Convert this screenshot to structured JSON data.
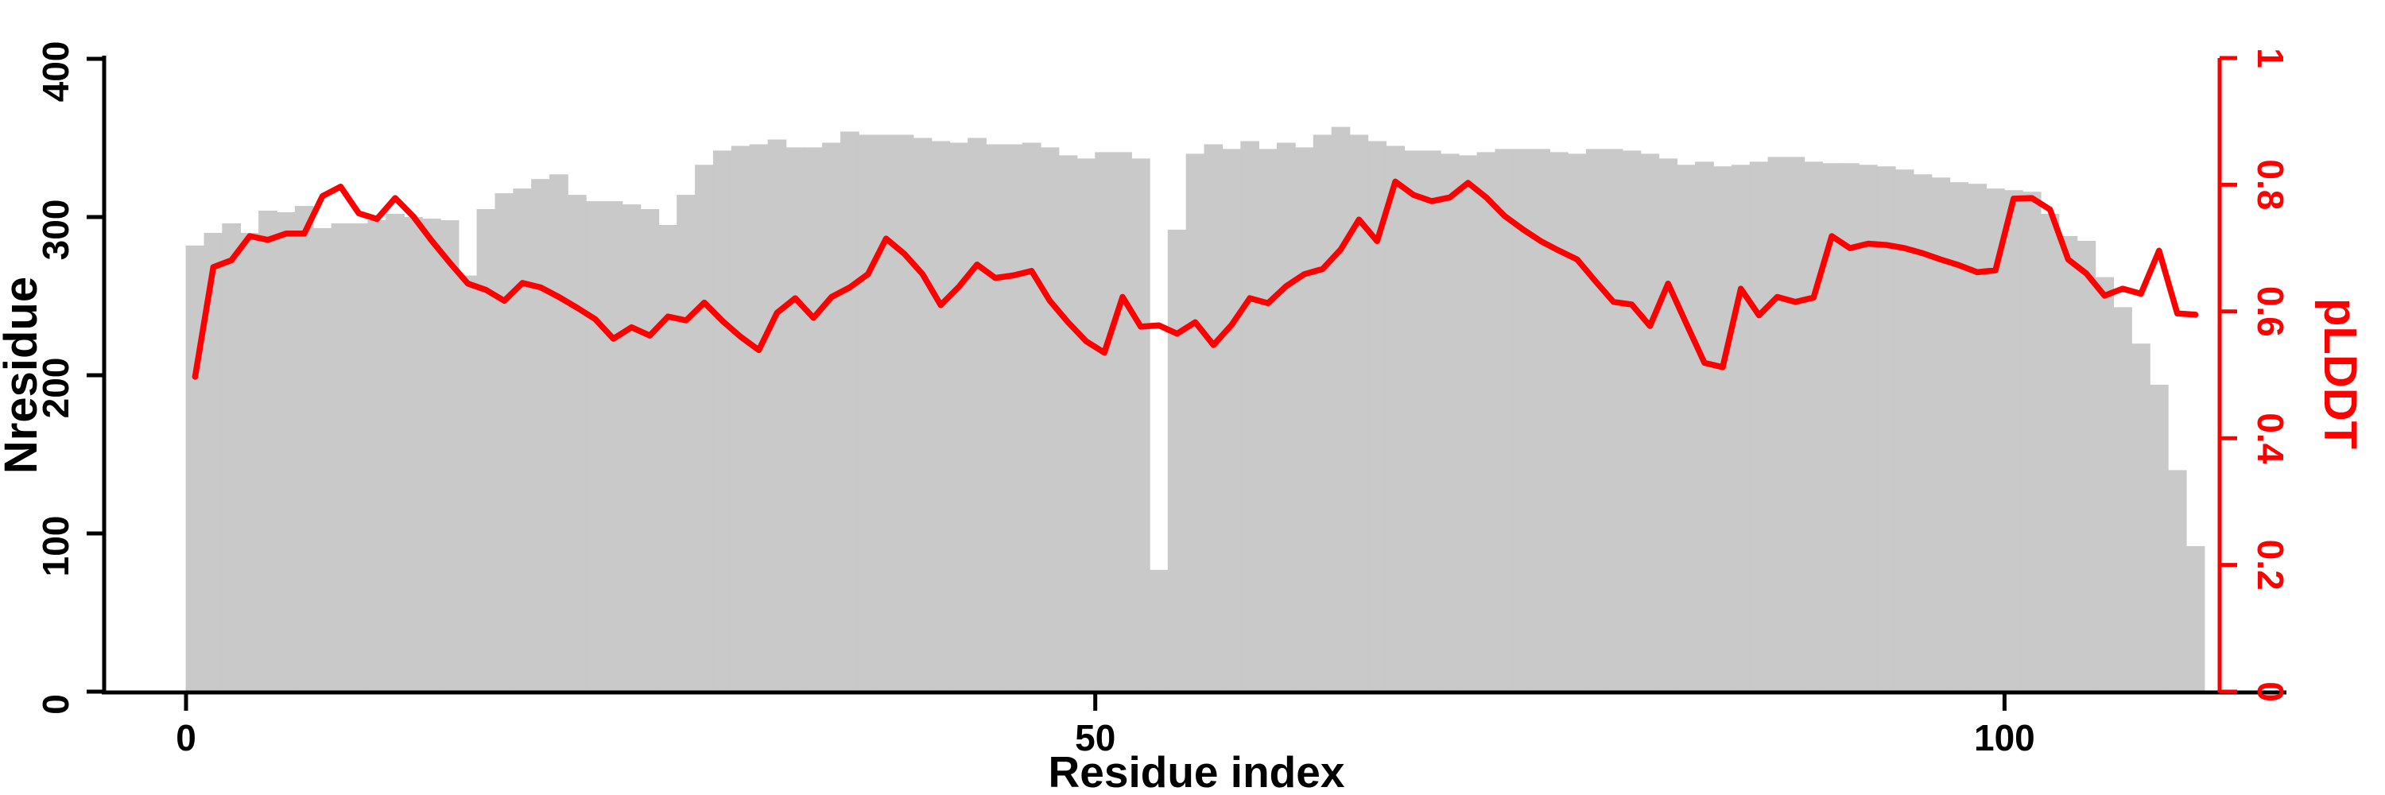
{
  "chart_data": {
    "type": "bar+line",
    "xlabel": "Residue index",
    "ylabel_left": "Nresidue",
    "ylabel_right": "pLDDT",
    "x_tick_labels": [
      "0",
      "50",
      "100"
    ],
    "x_tick_values": [
      0,
      50,
      100
    ],
    "x_range": [
      0,
      111
    ],
    "grid": "off",
    "legend": "none",
    "left_axis": {
      "range": [
        0,
        400
      ],
      "tick_labels": [
        "0",
        "100",
        "200",
        "300",
        "400"
      ],
      "tick_values": [
        0,
        100,
        200,
        300,
        400
      ],
      "color": "#000000"
    },
    "right_axis": {
      "range": [
        0,
        1
      ],
      "tick_labels": [
        "0",
        "0.2",
        "0.4",
        "0.6",
        "0.8",
        "1"
      ],
      "tick_values": [
        0,
        0.2,
        0.4,
        0.6,
        0.8,
        1
      ],
      "color": "#ff0000"
    },
    "bar_color": "#c9c9c9",
    "line_color": "#ff0000",
    "categories_note": "residue index 0-110, one bar per residue",
    "series": [
      {
        "name": "Nresidue",
        "type": "bar",
        "axis": "left",
        "values": [
          282,
          290,
          296,
          290,
          304,
          303,
          307,
          293,
          296,
          296,
          298,
          302,
          300,
          299,
          298,
          263,
          305,
          315,
          318,
          324,
          327,
          314,
          310,
          310,
          308,
          305,
          295,
          314,
          333,
          342,
          345,
          346,
          349,
          344,
          344,
          347,
          354,
          352,
          352,
          352,
          350,
          348,
          347,
          350,
          346,
          346,
          347,
          344,
          339,
          337,
          341,
          341,
          337,
          77,
          292,
          340,
          346,
          343,
          348,
          343,
          347,
          344,
          352,
          357,
          352,
          348,
          345,
          342,
          342,
          340,
          339,
          341,
          343,
          343,
          343,
          341,
          340,
          343,
          343,
          342,
          340,
          337,
          333,
          335,
          332,
          333,
          335,
          338,
          338,
          335,
          334,
          334,
          333,
          332,
          330,
          327,
          325,
          322,
          321,
          318,
          317,
          316,
          302,
          288,
          285,
          262,
          243,
          220,
          194,
          140,
          92
        ]
      },
      {
        "name": "pLDDT",
        "type": "line",
        "axis": "right",
        "values": [
          0.497,
          0.67,
          0.681,
          0.719,
          0.713,
          0.723,
          0.723,
          0.782,
          0.797,
          0.755,
          0.746,
          0.779,
          0.75,
          0.712,
          0.677,
          0.644,
          0.634,
          0.617,
          0.645,
          0.638,
          0.623,
          0.606,
          0.588,
          0.557,
          0.575,
          0.562,
          0.592,
          0.586,
          0.614,
          0.585,
          0.56,
          0.539,
          0.598,
          0.621,
          0.59,
          0.623,
          0.638,
          0.659,
          0.715,
          0.691,
          0.659,
          0.61,
          0.639,
          0.674,
          0.653,
          0.657,
          0.664,
          0.617,
          0.583,
          0.553,
          0.535,
          0.623,
          0.576,
          0.578,
          0.565,
          0.583,
          0.547,
          0.579,
          0.621,
          0.613,
          0.64,
          0.659,
          0.667,
          0.698,
          0.745,
          0.711,
          0.805,
          0.784,
          0.774,
          0.78,
          0.803,
          0.78,
          0.751,
          0.73,
          0.711,
          0.696,
          0.682,
          0.648,
          0.615,
          0.611,
          0.577,
          0.644,
          0.581,
          0.519,
          0.512,
          0.636,
          0.594,
          0.623,
          0.615,
          0.622,
          0.719,
          0.7,
          0.707,
          0.705,
          0.7,
          0.692,
          0.682,
          0.673,
          0.662,
          0.665,
          0.778,
          0.779,
          0.761,
          0.682,
          0.66,
          0.625,
          0.636,
          0.628,
          0.696,
          0.597,
          0.595
        ]
      }
    ]
  }
}
